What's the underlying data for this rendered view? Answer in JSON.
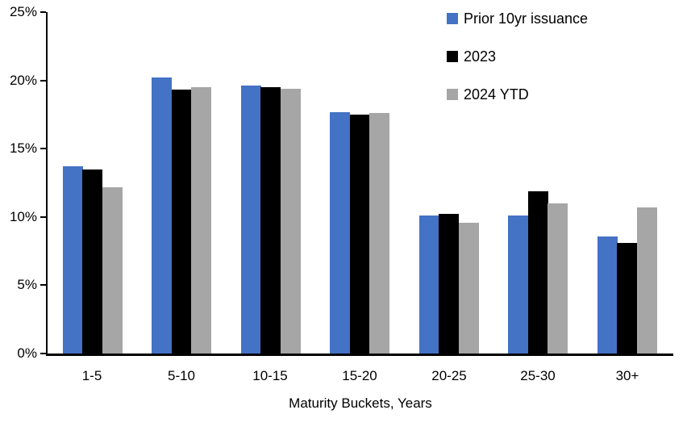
{
  "chart_data": {
    "type": "bar",
    "categories": [
      "1-5",
      "5-10",
      "10-15",
      "15-20",
      "20-25",
      "25-30",
      "30+"
    ],
    "series": [
      {
        "name": "Prior 10yr issuance",
        "color": "#4472C4",
        "values": [
          13.7,
          20.2,
          19.6,
          17.7,
          10.1,
          10.1,
          8.6
        ]
      },
      {
        "name": "2023",
        "color": "#000000",
        "values": [
          13.5,
          19.3,
          19.5,
          17.5,
          10.2,
          11.9,
          8.1
        ]
      },
      {
        "name": "2024 YTD",
        "color": "#A6A6A6",
        "values": [
          12.2,
          19.5,
          19.4,
          17.6,
          9.6,
          11.0,
          10.7
        ]
      }
    ],
    "xlabel": "Maturity Buckets, Years",
    "ylabel": "",
    "ylim": [
      0,
      25
    ],
    "ytick_step": 5,
    "ytick_labels": [
      "0%",
      "5%",
      "10%",
      "15%",
      "20%",
      "25%"
    ],
    "grid": false,
    "legend_position": "top-right",
    "axis_color": "#000000",
    "background_color": "#FFFFFF"
  }
}
